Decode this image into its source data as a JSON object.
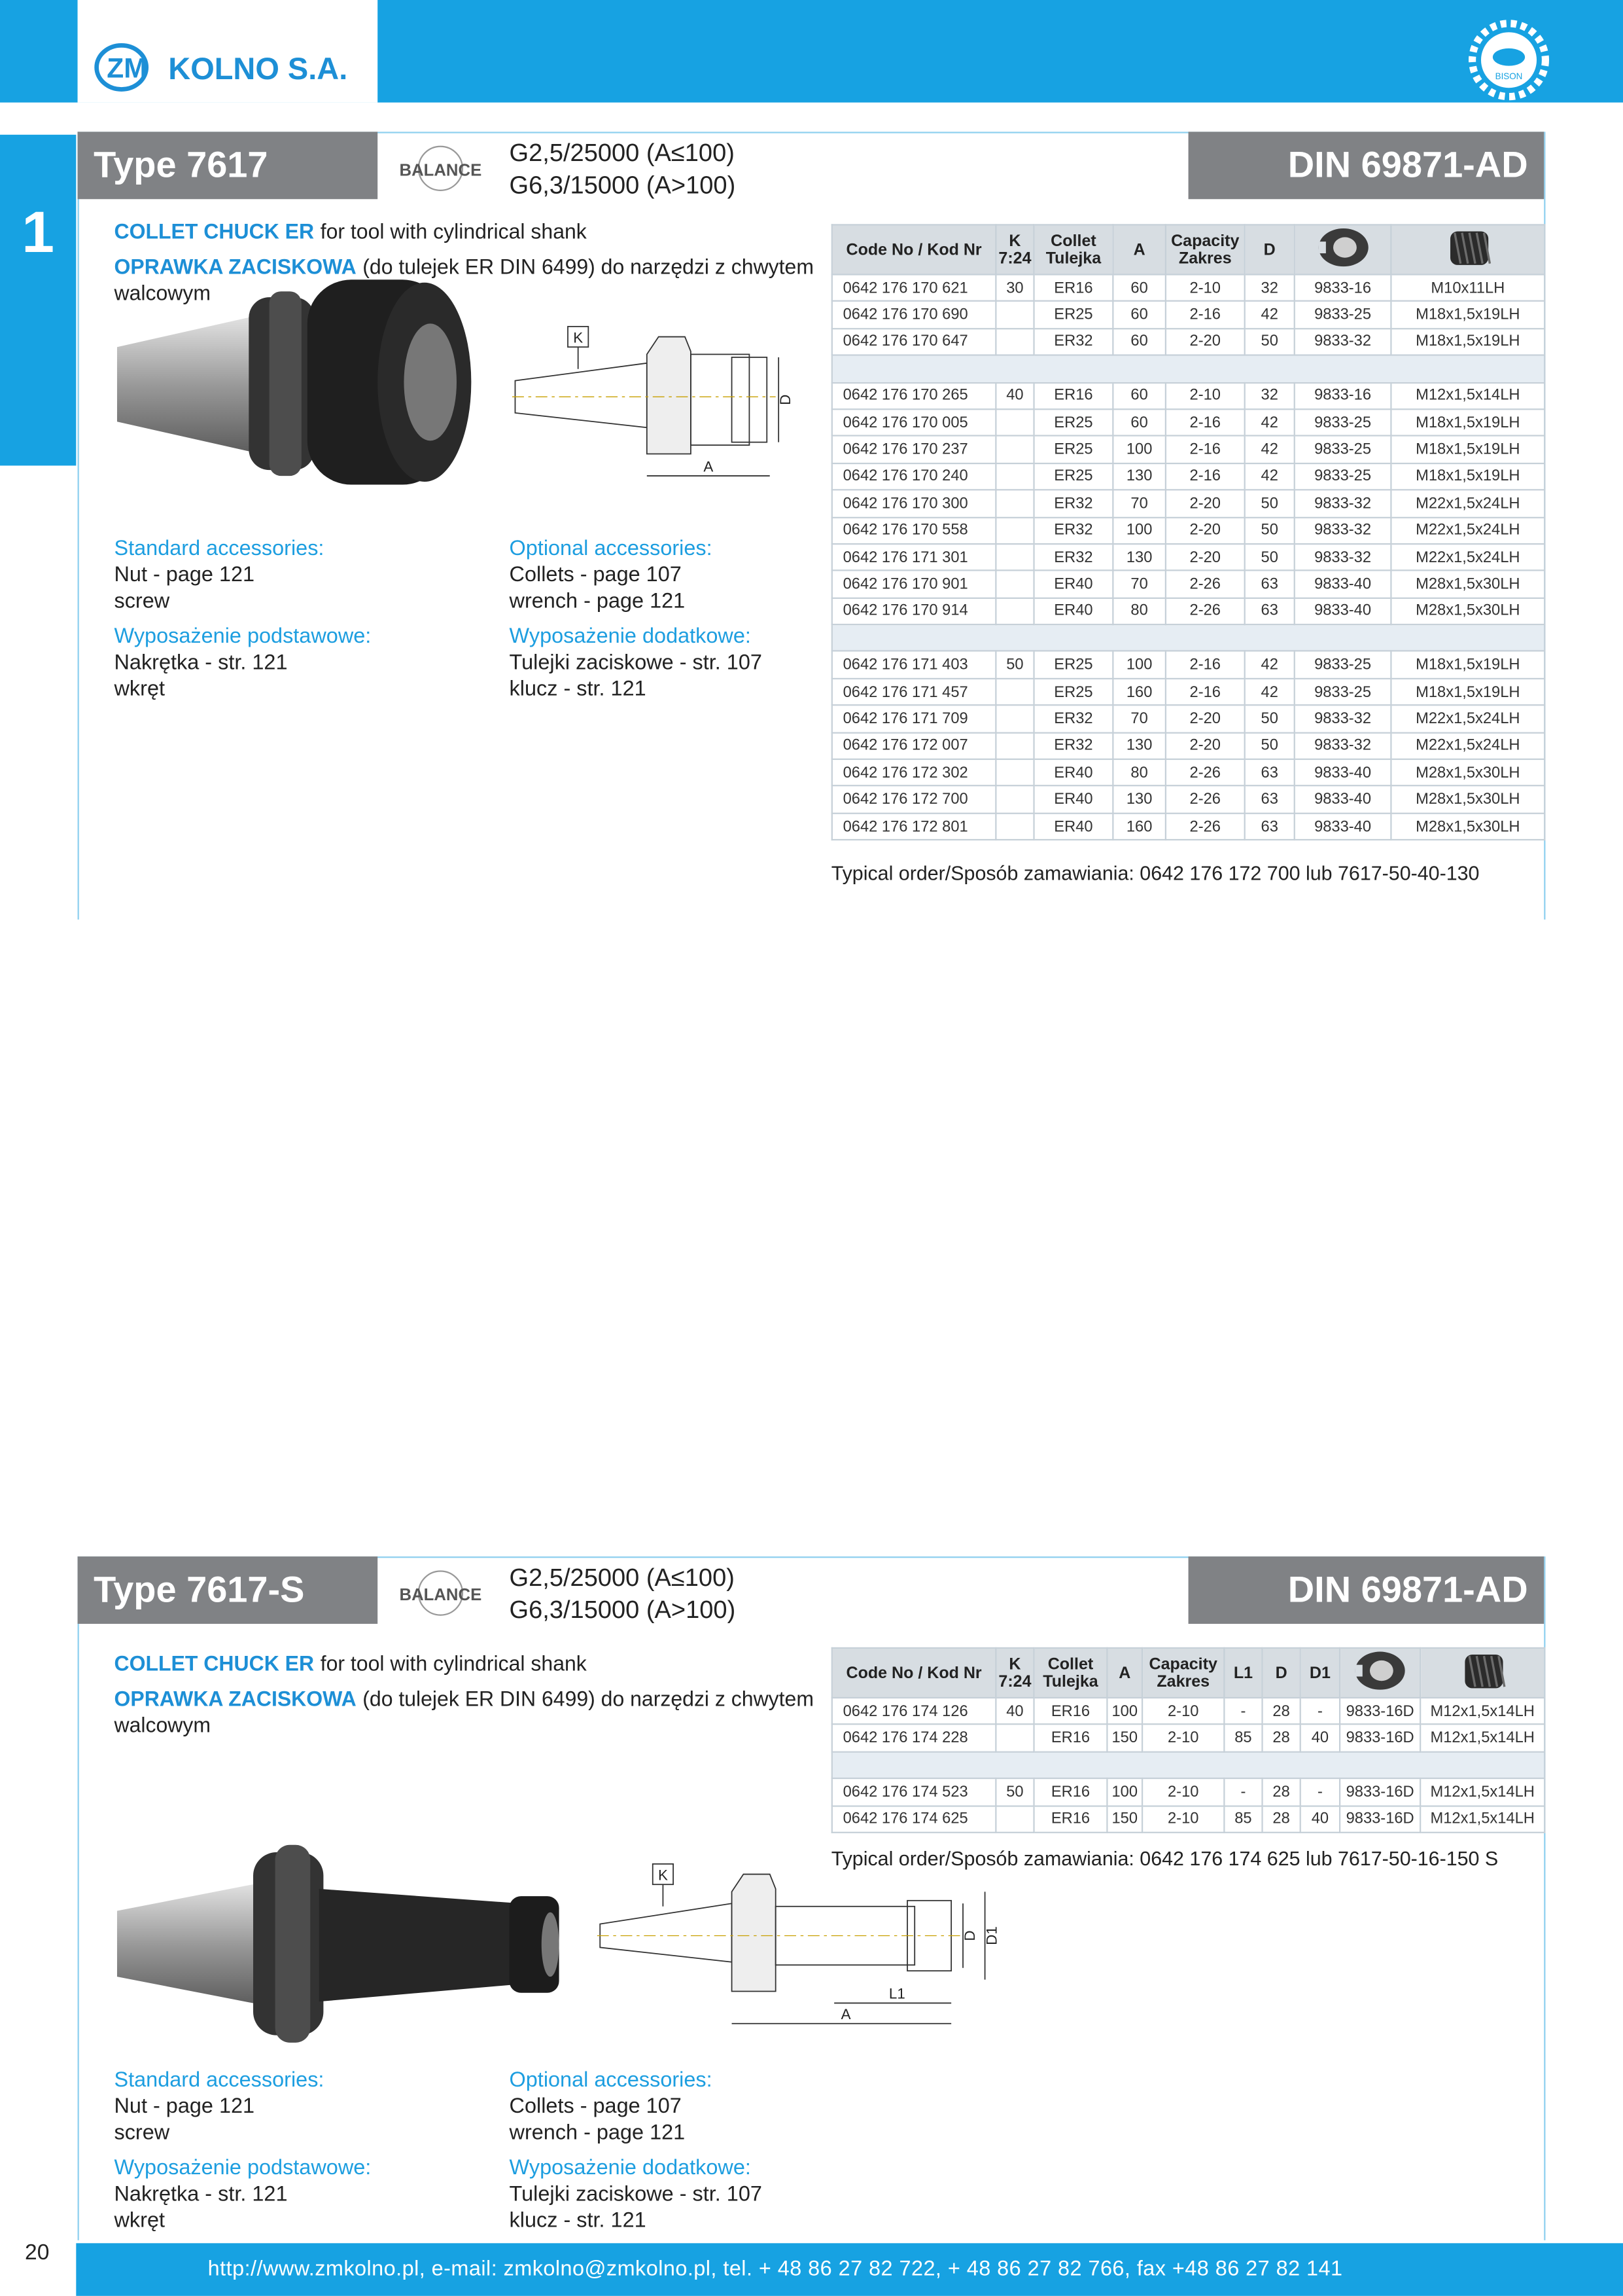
{
  "header": {
    "logo_mark": "ZM",
    "logo": "KOLNO S.A.",
    "badge": "BISON"
  },
  "chapter": "1",
  "sections": [
    {
      "title": "Type 7617",
      "balance": "BALANCE",
      "grade": [
        "G2,5/25000 (A≤100)",
        "G6,3/15000 (A>100)"
      ],
      "din": "DIN 69871-AD",
      "desc": [
        {
          "bold": "COLLET CHUCK ER",
          "text": "for tool with cylindrical shank"
        },
        {
          "bold": "OPRAWKA ZACISKOWA",
          "text": "(do tulejek ER DIN 6499) do narzędzi z chwytem walcowym"
        }
      ],
      "drawing_labels": [
        "K",
        "A",
        "D"
      ],
      "table": {
        "headers": [
          "Code No / Kod Nr",
          [
            "K",
            "7:24"
          ],
          [
            "Collet",
            "Tulejka"
          ],
          "A",
          [
            "Capacity",
            "Zakres"
          ],
          "D"
        ],
        "groups": [
          {
            "k": "30",
            "rows": [
              [
                "0642 176 170 621",
                "ER16",
                "60",
                "2-10",
                "32",
                "9833-16",
                "M10x11LH"
              ],
              [
                "0642 176 170 690",
                "ER25",
                "60",
                "2-16",
                "42",
                "9833-25",
                "M18x1,5x19LH"
              ],
              [
                "0642 176 170 647",
                "ER32",
                "60",
                "2-20",
                "50",
                "9833-32",
                "M18x1,5x19LH"
              ]
            ]
          },
          {
            "k": "40",
            "rows": [
              [
                "0642 176 170 265",
                "ER16",
                "60",
                "2-10",
                "32",
                "9833-16",
                "M12x1,5x14LH"
              ],
              [
                "0642 176 170 005",
                "ER25",
                "60",
                "2-16",
                "42",
                "9833-25",
                "M18x1,5x19LH"
              ],
              [
                "0642 176 170 237",
                "ER25",
                "100",
                "2-16",
                "42",
                "9833-25",
                "M18x1,5x19LH"
              ],
              [
                "0642 176 170 240",
                "ER25",
                "130",
                "2-16",
                "42",
                "9833-25",
                "M18x1,5x19LH"
              ],
              [
                "0642 176 170 300",
                "ER32",
                "70",
                "2-20",
                "50",
                "9833-32",
                "M22x1,5x24LH"
              ],
              [
                "0642 176 170 558",
                "ER32",
                "100",
                "2-20",
                "50",
                "9833-32",
                "M22x1,5x24LH"
              ],
              [
                "0642 176 171 301",
                "ER32",
                "130",
                "2-20",
                "50",
                "9833-32",
                "M22x1,5x24LH"
              ],
              [
                "0642 176 170 901",
                "ER40",
                "70",
                "2-26",
                "63",
                "9833-40",
                "M28x1,5x30LH"
              ],
              [
                "0642 176 170 914",
                "ER40",
                "80",
                "2-26",
                "63",
                "9833-40",
                "M28x1,5x30LH"
              ]
            ]
          },
          {
            "k": "50",
            "rows": [
              [
                "0642 176 171 403",
                "ER25",
                "100",
                "2-16",
                "42",
                "9833-25",
                "M18x1,5x19LH"
              ],
              [
                "0642 176 171 457",
                "ER25",
                "160",
                "2-16",
                "42",
                "9833-25",
                "M18x1,5x19LH"
              ],
              [
                "0642 176 171 709",
                "ER32",
                "70",
                "2-20",
                "50",
                "9833-32",
                "M22x1,5x24LH"
              ],
              [
                "0642 176 172 007",
                "ER32",
                "130",
                "2-20",
                "50",
                "9833-32",
                "M22x1,5x24LH"
              ],
              [
                "0642 176 172 302",
                "ER40",
                "80",
                "2-26",
                "63",
                "9833-40",
                "M28x1,5x30LH"
              ],
              [
                "0642 176 172 700",
                "ER40",
                "130",
                "2-26",
                "63",
                "9833-40",
                "M28x1,5x30LH"
              ],
              [
                "0642 176 172 801",
                "ER40",
                "160",
                "2-26",
                "63",
                "9833-40",
                "M28x1,5x30LH"
              ]
            ]
          }
        ]
      },
      "order": "Typical order/Sposób zamawiania: 0642 176 172 700 lub 7617-50-40-130",
      "accessories": [
        {
          "heading": "Standard accessories:",
          "items": [
            "Nut - page 121",
            "screw"
          ]
        },
        {
          "heading": "Wyposażenie podstawowe:",
          "items": [
            "Nakrętka - str. 121",
            "wkręt"
          ]
        },
        {
          "heading": "Optional accessories:",
          "items": [
            "Collets - page 107",
            "wrench - page 121"
          ]
        },
        {
          "heading": "Wyposażenie dodatkowe:",
          "items": [
            "Tulejki zaciskowe - str. 107",
            "klucz - str. 121"
          ]
        }
      ]
    },
    {
      "title": "Type 7617-S",
      "balance": "BALANCE",
      "grade": [
        "G2,5/25000 (A≤100)",
        "G6,3/15000 (A>100)"
      ],
      "din": "DIN 69871-AD",
      "desc": [
        {
          "bold": "COLLET CHUCK ER",
          "text": "for tool with cylindrical shank"
        },
        {
          "bold": "OPRAWKA ZACISKOWA",
          "text": "(do tulejek ER DIN 6499) do narzędzi z chwytem walcowym"
        }
      ],
      "drawing_labels": [
        "K",
        "A",
        "L1",
        "D",
        "D1"
      ],
      "table": {
        "headers": [
          "Code No / Kod Nr",
          [
            "K",
            "7:24"
          ],
          [
            "Collet",
            "Tulejka"
          ],
          "A",
          [
            "Capacity",
            "Zakres"
          ],
          "L1",
          "D",
          "D1"
        ],
        "groups": [
          {
            "k": "40",
            "rows": [
              [
                "0642 176 174 126",
                "ER16",
                "100",
                "2-10",
                "-",
                "28",
                "-",
                "9833-16D",
                "M12x1,5x14LH"
              ],
              [
                "0642 176 174 228",
                "ER16",
                "150",
                "2-10",
                "85",
                "28",
                "40",
                "9833-16D",
                "M12x1,5x14LH"
              ]
            ]
          },
          {
            "k": "50",
            "rows": [
              [
                "0642 176 174 523",
                "ER16",
                "100",
                "2-10",
                "-",
                "28",
                "-",
                "9833-16D",
                "M12x1,5x14LH"
              ],
              [
                "0642 176 174 625",
                "ER16",
                "150",
                "2-10",
                "85",
                "28",
                "40",
                "9833-16D",
                "M12x1,5x14LH"
              ]
            ]
          }
        ]
      },
      "order": "Typical order/Sposób zamawiania: 0642 176 174 625 lub 7617-50-16-150 S",
      "accessories": [
        {
          "heading": "Standard accessories:",
          "items": [
            "Nut - page 121",
            "screw"
          ]
        },
        {
          "heading": "Wyposażenie podstawowe:",
          "items": [
            "Nakrętka - str. 121",
            "wkręt"
          ]
        },
        {
          "heading": "Optional accessories:",
          "items": [
            "Collets - page 107",
            "wrench - page 121"
          ]
        },
        {
          "heading": "Wyposażenie dodatkowe:",
          "items": [
            "Tulejki zaciskowe - str. 107",
            "klucz - str. 121"
          ]
        }
      ]
    }
  ],
  "footer": {
    "page": "20",
    "contact": "http://www.zmkolno.pl, e-mail: zmkolno@zmkolno.pl, tel. + 48 86 27 82 722, + 48 86 27 82 766, fax +48 86 27 82 141"
  }
}
